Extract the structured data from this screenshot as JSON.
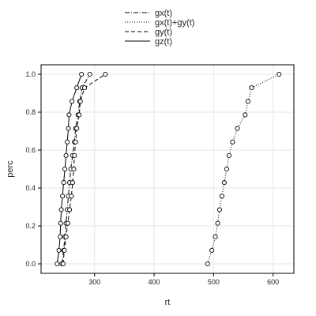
{
  "chart_data": {
    "type": "line",
    "xlabel": "rt",
    "ylabel": "perc",
    "xlim": [
      210,
      635
    ],
    "ylim": [
      -0.05,
      1.05
    ],
    "xticks": [
      300,
      400,
      500,
      600
    ],
    "yticks": [
      0.0,
      0.2,
      0.4,
      0.6,
      0.8,
      1.0
    ],
    "grid": true,
    "legend_position": "top",
    "series": [
      {
        "name": "gx(t)",
        "dash": "6,2,1,2",
        "x": [
          245,
          248,
          250,
          252,
          254,
          256,
          258,
          260,
          263,
          266,
          268,
          272,
          275,
          279,
          292
        ],
        "y": [
          0.0,
          0.0714,
          0.1429,
          0.2143,
          0.2857,
          0.3571,
          0.4286,
          0.5,
          0.5714,
          0.6429,
          0.7143,
          0.7857,
          0.8571,
          0.9286,
          1.0
        ]
      },
      {
        "name": "gx(t)+gy(t)",
        "dash": "1,2",
        "x": [
          490,
          497,
          503,
          507,
          510,
          514,
          518,
          522,
          526,
          532,
          540,
          553,
          558,
          564,
          610
        ],
        "y": [
          0.0,
          0.0714,
          0.1429,
          0.2143,
          0.2857,
          0.3571,
          0.4286,
          0.5,
          0.5714,
          0.6429,
          0.7143,
          0.7857,
          0.8571,
          0.9286,
          1.0
        ]
      },
      {
        "name": "gy(t)",
        "dash": "5,3",
        "x": [
          247,
          249,
          252,
          255,
          258,
          261,
          263,
          265,
          266,
          268,
          270,
          274,
          276,
          283,
          318
        ],
        "y": [
          0.0,
          0.0714,
          0.1429,
          0.2143,
          0.2857,
          0.3571,
          0.4286,
          0.5,
          0.5714,
          0.6429,
          0.7143,
          0.7857,
          0.8571,
          0.9286,
          1.0
        ]
      },
      {
        "name": "gz(t)",
        "dash": "",
        "x": [
          237,
          240,
          242,
          243,
          244,
          246,
          248,
          250,
          252,
          254,
          256,
          257,
          262,
          270,
          278
        ],
        "y": [
          0.0,
          0.0714,
          0.1429,
          0.2143,
          0.2857,
          0.3571,
          0.4286,
          0.5,
          0.5714,
          0.6429,
          0.7143,
          0.7857,
          0.8571,
          0.9286,
          1.0
        ]
      }
    ]
  }
}
